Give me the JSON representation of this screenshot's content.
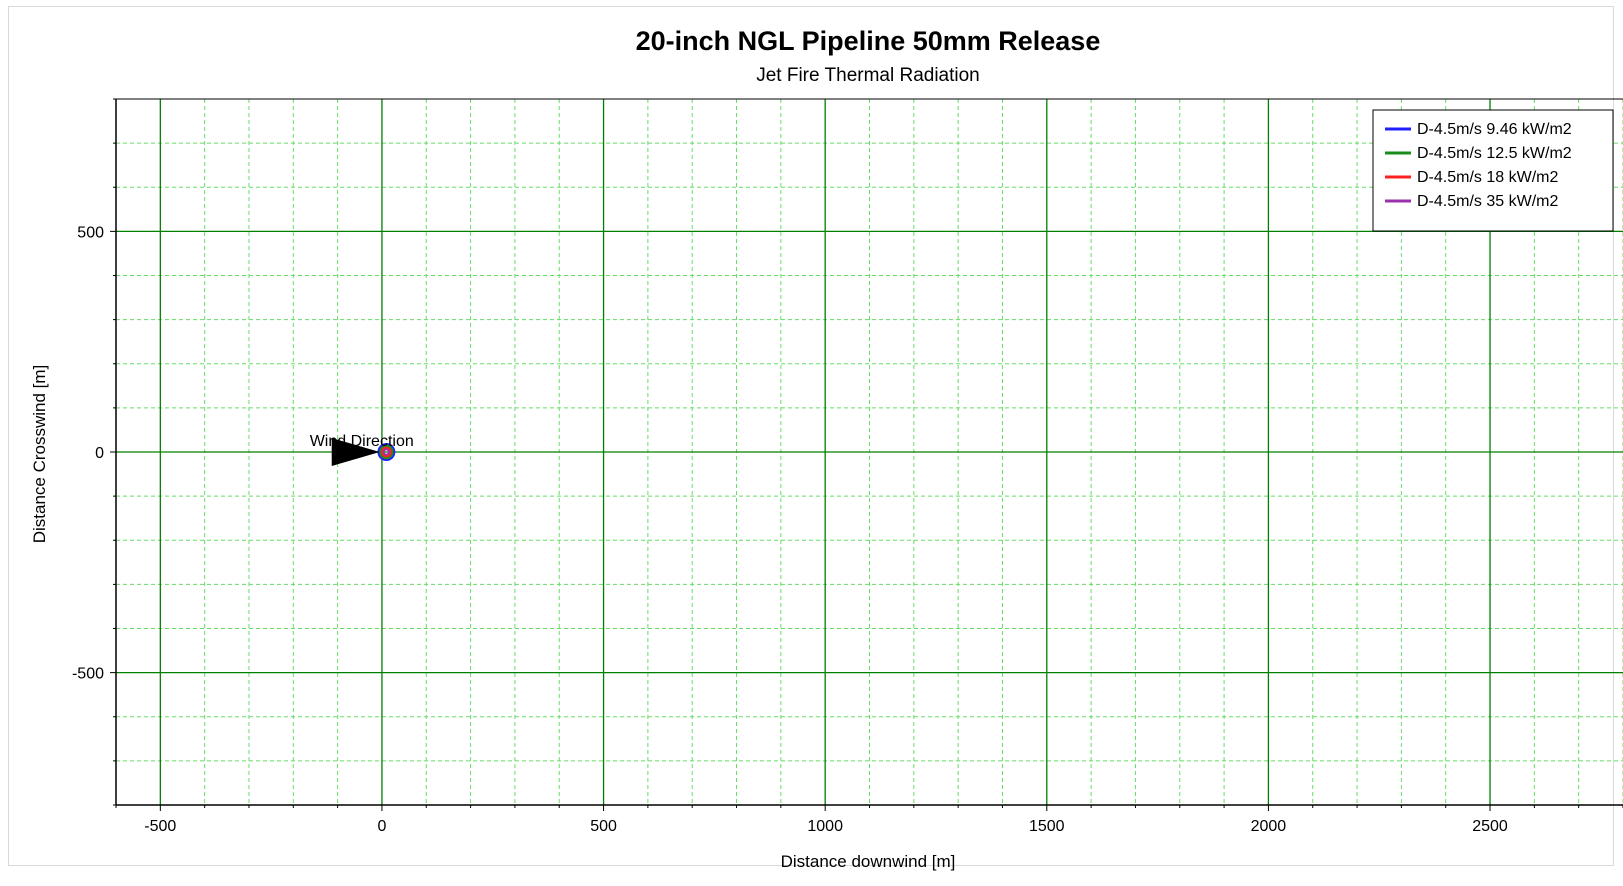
{
  "chart_data": {
    "type": "scatter",
    "title": "20-inch NGL Pipeline 50mm Release",
    "subtitle": "Jet Fire Thermal Radiation",
    "xlabel": "Distance downwind [m]",
    "ylabel": "Distance Crosswind [m]",
    "xlim": [
      -600,
      2800
    ],
    "ylim": [
      -800,
      800
    ],
    "x_ticks": [
      -500,
      0,
      500,
      1000,
      1500,
      2000,
      2500
    ],
    "y_ticks": [
      500,
      0,
      -500
    ],
    "grid": true,
    "grid_major_color": "#008000",
    "grid_minor_color": "#66dd66",
    "legend_position": "top-right",
    "series": [
      {
        "name": "D-4.5m/s 9.46 kW/m2",
        "color": "#1f1fff",
        "center": [
          10,
          0
        ],
        "radius": 18
      },
      {
        "name": "D-4.5m/s 12.5 kW/m2",
        "color": "#1a8c1a",
        "center": [
          10,
          0
        ],
        "radius": 14
      },
      {
        "name": "D-4.5m/s 18 kW/m2",
        "color": "#ff2020",
        "center": [
          10,
          0
        ],
        "radius": 10
      },
      {
        "name": "D-4.5m/s 35 kW/m2",
        "color": "#9b2fae",
        "center": [
          10,
          0
        ],
        "radius": 6
      }
    ],
    "annotations": [
      {
        "text": "Wind Direction",
        "x": -5,
        "y": 0,
        "marker": "arrow-right"
      }
    ]
  }
}
